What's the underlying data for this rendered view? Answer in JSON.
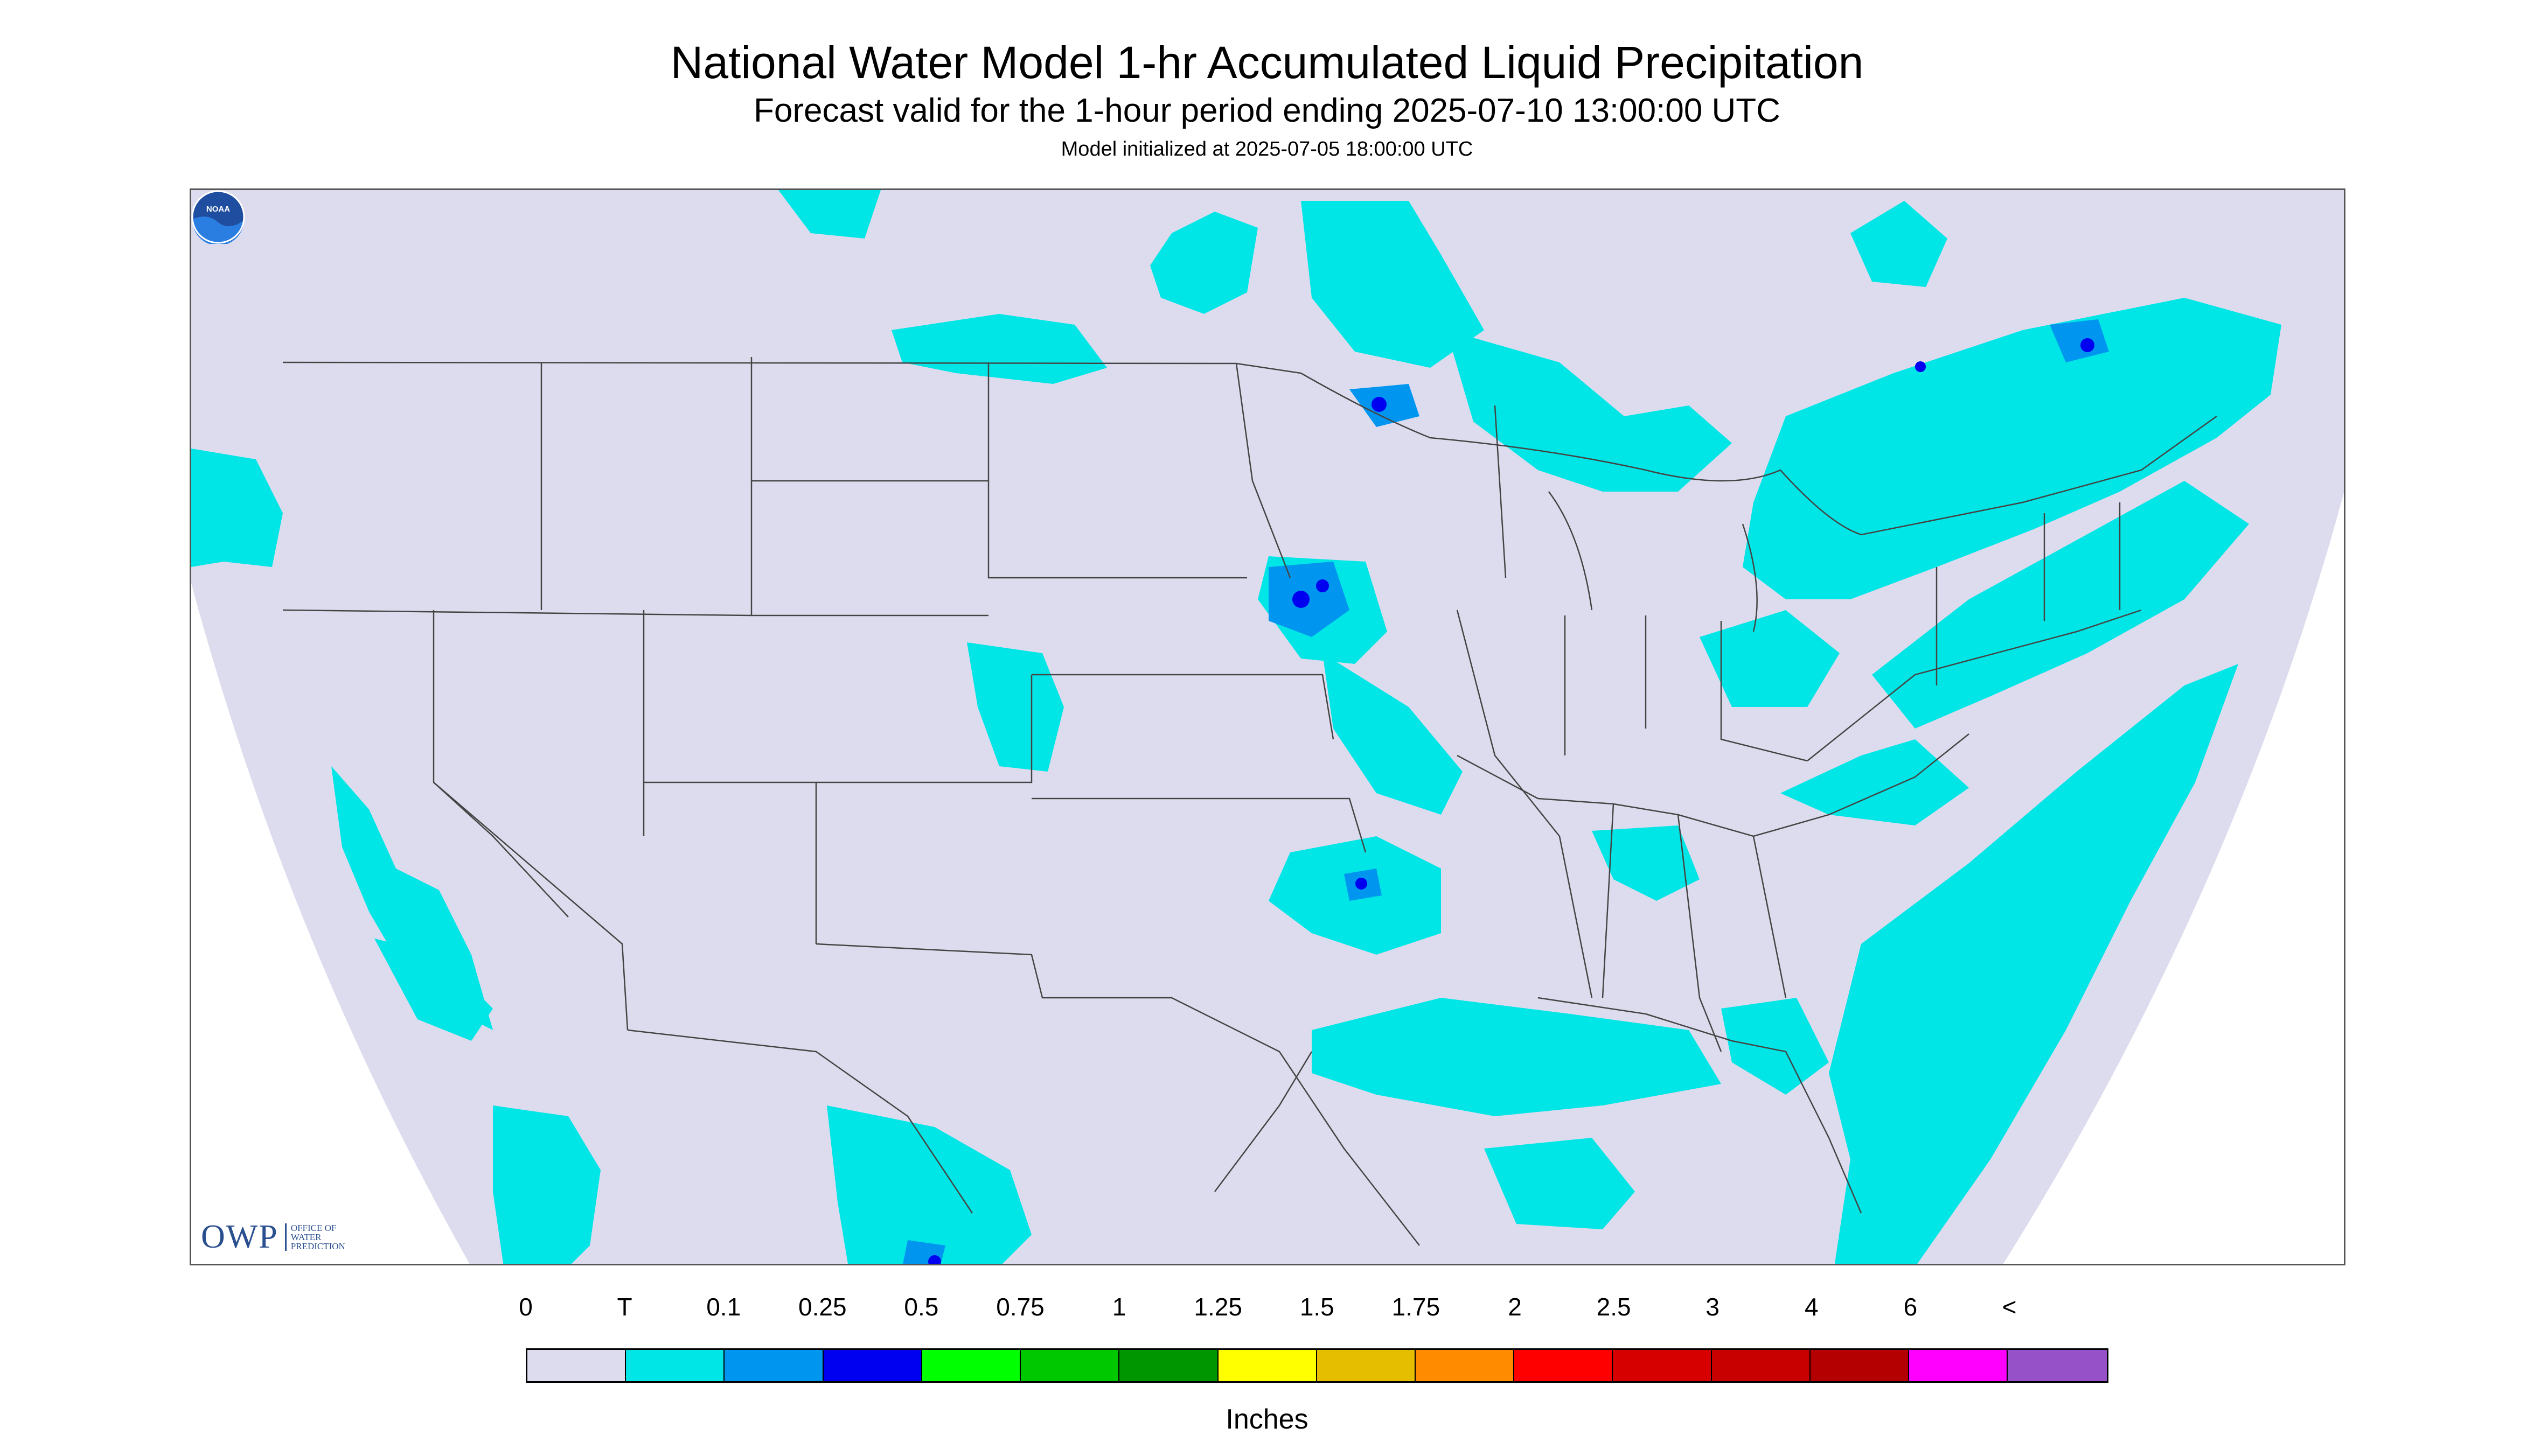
{
  "header": {
    "title": "National Water Model 1-hr Accumulated Liquid Precipitation",
    "subtitle": "Forecast valid for the 1-hour period ending 2025-07-10 13:00:00 UTC",
    "init_line": "Model initialized at 2025-07-05 18:00:00 UTC"
  },
  "map": {
    "background_color": "#dcdcee",
    "outside_color": "#ffffff",
    "boundary_color": "#444444",
    "precip_colors": {
      "trace": "#00e5e5",
      "light": "#0096f0",
      "moderate": "#0000f0"
    },
    "owp_logo": {
      "mark": "OWP",
      "lines": [
        "OFFICE OF",
        "WATER",
        "PREDICTION"
      ]
    },
    "noaa_logo": "NOAA"
  },
  "legend": {
    "labels": [
      "0",
      "T",
      "0.1",
      "0.25",
      "0.5",
      "0.75",
      "1",
      "1.25",
      "1.5",
      "1.75",
      "2",
      "2.5",
      "3",
      "4",
      "6",
      "<"
    ],
    "colors": [
      "#dcdcee",
      "#00e5e5",
      "#0096f0",
      "#0000f0",
      "#00ff00",
      "#00c800",
      "#009600",
      "#ffff00",
      "#e6be00",
      "#ff8c00",
      "#ff0000",
      "#d70000",
      "#c80000",
      "#b40000",
      "#ff00ff",
      "#9650c8"
    ],
    "units": "Inches"
  }
}
